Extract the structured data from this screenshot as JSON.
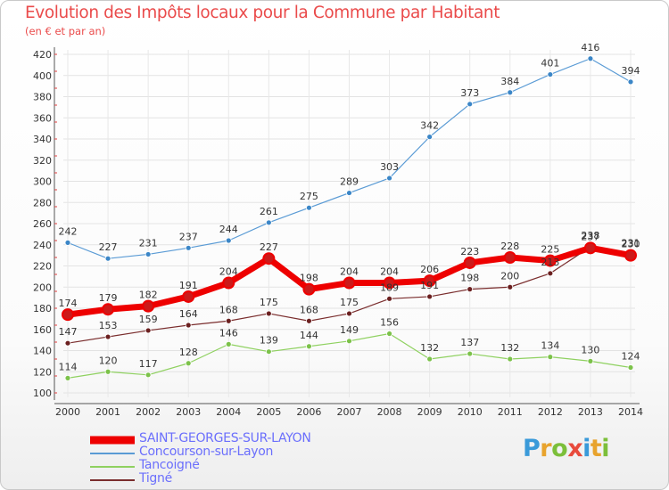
{
  "title": "Evolution des Impôts locaux pour la Commune par Habitant",
  "subtitle": "(en € et par an)",
  "brand": {
    "letters": [
      {
        "ch": "P",
        "color": "#3a9ad9"
      },
      {
        "ch": "r",
        "color": "#e8a32d"
      },
      {
        "ch": "o",
        "color": "#7cbf3a"
      },
      {
        "ch": "x",
        "color": "#e84a3c"
      },
      {
        "ch": "i",
        "color": "#3a9ad9"
      },
      {
        "ch": "t",
        "color": "#e8a32d"
      },
      {
        "ch": "i",
        "color": "#7cbf3a"
      }
    ]
  },
  "chart_data": {
    "type": "line",
    "x": [
      "2000",
      "2001",
      "2002",
      "2003",
      "2004",
      "2005",
      "2006",
      "2007",
      "2008",
      "2009",
      "2010",
      "2011",
      "2012",
      "2013",
      "2014"
    ],
    "ylim": [
      100,
      420
    ],
    "yticks": [
      100,
      120,
      140,
      160,
      180,
      200,
      220,
      240,
      260,
      280,
      300,
      320,
      340,
      360,
      380,
      400,
      420
    ],
    "grid": true,
    "legend_position": "bottom-left",
    "series": [
      {
        "name": "SAINT-GEORGES-SUR-LAYON",
        "color": "#ee0000",
        "marker": "#cc1a1a",
        "width": 7,
        "values": [
          174,
          179,
          182,
          191,
          204,
          227,
          198,
          204,
          204,
          206,
          223,
          228,
          225,
          237,
          230
        ]
      },
      {
        "name": "Concourson-sur-Layon",
        "color": "#5a9bd5",
        "marker": "#3b86c7",
        "width": 1.2,
        "values": [
          242,
          227,
          231,
          237,
          244,
          261,
          275,
          289,
          303,
          342,
          373,
          384,
          401,
          416,
          394
        ]
      },
      {
        "name": "Tancoigné",
        "color": "#8fd160",
        "marker": "#7cc24a",
        "width": 1.2,
        "values": [
          114,
          120,
          117,
          128,
          146,
          139,
          144,
          149,
          156,
          132,
          137,
          132,
          134,
          130,
          124
        ]
      },
      {
        "name": "Tigné",
        "color": "#7a2d2d",
        "marker": "#6b2020",
        "width": 1.2,
        "values": [
          147,
          153,
          159,
          164,
          168,
          175,
          168,
          175,
          189,
          191,
          198,
          200,
          213,
          238,
          231
        ]
      }
    ],
    "point_labels": {
      "SAINT-GEORGES-SUR-LAYON": [
        "174",
        "179",
        "182",
        "191",
        "204",
        "227",
        "198",
        "204",
        "204",
        "206",
        "223",
        "228",
        "225",
        "237",
        "230"
      ],
      "Concourson-sur-Layon": [
        "242",
        "227",
        "231",
        "237",
        "244",
        "261",
        "275",
        "289",
        "303",
        "342",
        "373",
        "384",
        "401",
        "416",
        "394"
      ],
      "Tancoigné": [
        "114",
        "120",
        "117",
        "128",
        "146",
        "139",
        "144",
        "149",
        "156",
        "132",
        "137",
        "132",
        "134",
        "130",
        "124"
      ],
      "Tigné": [
        "147",
        "153",
        "159",
        "164",
        "168",
        "175",
        "168",
        "175",
        "189",
        "191",
        "198",
        "200",
        "213",
        "238",
        "231"
      ]
    }
  }
}
